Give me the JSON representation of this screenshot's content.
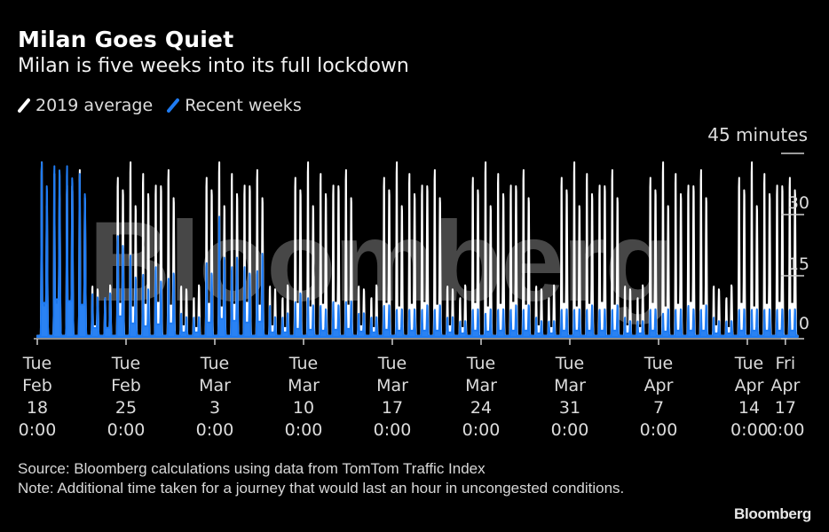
{
  "header": {
    "title": "Milan Goes Quiet",
    "subtitle": "Milan is five weeks into its full lockdown"
  },
  "legend": {
    "items": [
      {
        "label": "2019 average",
        "color": "#ffffff"
      },
      {
        "label": "Recent weeks",
        "color": "#1f7bf2"
      }
    ]
  },
  "chart_data": {
    "type": "area",
    "title": "Milan Goes Quiet",
    "subtitle": "Milan is five weeks into its full lockdown",
    "ylabel": "45 minutes",
    "ylim": [
      0,
      45
    ],
    "yticks": [
      {
        "value": 45,
        "label": ""
      },
      {
        "value": 30,
        "label": "30"
      },
      {
        "value": 15,
        "label": "15"
      },
      {
        "value": 0,
        "label": "0"
      }
    ],
    "units_label": "45 minutes",
    "grid": false,
    "legend_position": "top-left",
    "xlim_days": [
      0,
      59
    ],
    "xticks": [
      {
        "day": 0,
        "lines": [
          "Tue",
          "Feb",
          "18",
          "0:00"
        ]
      },
      {
        "day": 7,
        "lines": [
          "Tue",
          "Feb",
          "25",
          "0:00"
        ]
      },
      {
        "day": 14,
        "lines": [
          "Tue",
          "Mar",
          "3",
          "0:00"
        ]
      },
      {
        "day": 21,
        "lines": [
          "Tue",
          "Mar",
          "10",
          "0:00"
        ]
      },
      {
        "day": 28,
        "lines": [
          "Tue",
          "Mar",
          "17",
          "0:00"
        ]
      },
      {
        "day": 35,
        "lines": [
          "Tue",
          "Mar",
          "24",
          "0:00"
        ]
      },
      {
        "day": 42,
        "lines": [
          "Tue",
          "Mar",
          "31",
          "0:00"
        ]
      },
      {
        "day": 49,
        "lines": [
          "Tue",
          "Apr",
          "7",
          "0:00"
        ]
      },
      {
        "day": 56,
        "lines": [
          "Tue",
          "Apr",
          "14",
          "0:00"
        ]
      },
      {
        "day": 59,
        "lines": [
          "Fri",
          "Apr",
          "17",
          "0:00"
        ]
      }
    ],
    "series": [
      {
        "name": "2019 average",
        "color": "#ffffff",
        "note": "Daily peak minutes [morning, evening], day 0 = Tue Feb 18",
        "daily_peaks": [
          [
            45,
            33
          ],
          [
            42,
            36
          ],
          [
            39,
            38
          ],
          [
            43,
            35
          ],
          [
            13,
            12
          ],
          [
            10,
            13
          ],
          [
            41,
            37
          ],
          [
            45,
            33
          ],
          [
            42,
            36
          ],
          [
            39,
            38
          ],
          [
            43,
            35
          ],
          [
            13,
            12
          ],
          [
            10,
            13
          ],
          [
            41,
            37
          ],
          [
            45,
            33
          ],
          [
            42,
            36
          ],
          [
            39,
            38
          ],
          [
            43,
            35
          ],
          [
            13,
            12
          ],
          [
            10,
            13
          ],
          [
            41,
            37
          ],
          [
            45,
            33
          ],
          [
            42,
            36
          ],
          [
            39,
            38
          ],
          [
            43,
            35
          ],
          [
            13,
            12
          ],
          [
            10,
            13
          ],
          [
            41,
            37
          ],
          [
            45,
            33
          ],
          [
            42,
            36
          ],
          [
            39,
            38
          ],
          [
            43,
            35
          ],
          [
            13,
            12
          ],
          [
            10,
            13
          ],
          [
            41,
            37
          ],
          [
            45,
            33
          ],
          [
            42,
            36
          ],
          [
            39,
            38
          ],
          [
            43,
            35
          ],
          [
            13,
            12
          ],
          [
            10,
            13
          ],
          [
            41,
            37
          ],
          [
            45,
            33
          ],
          [
            42,
            36
          ],
          [
            39,
            38
          ],
          [
            43,
            35
          ],
          [
            13,
            12
          ],
          [
            10,
            13
          ],
          [
            41,
            37
          ],
          [
            45,
            33
          ],
          [
            42,
            36
          ],
          [
            39,
            38
          ],
          [
            43,
            35
          ],
          [
            13,
            12
          ],
          [
            10,
            13
          ],
          [
            41,
            37
          ],
          [
            45,
            33
          ],
          [
            42,
            36
          ],
          [
            39,
            38
          ],
          [
            41,
            37
          ]
        ]
      },
      {
        "name": "Recent weeks",
        "color": "#1f7bf2",
        "note": "Daily peak minutes [morning, evening], day 0 = Tue Feb 18",
        "daily_peaks": [
          [
            45,
            38
          ],
          [
            44,
            42
          ],
          [
            44,
            40
          ],
          [
            42,
            36
          ],
          [
            11,
            10
          ],
          [
            10,
            11
          ],
          [
            26,
            23
          ],
          [
            21,
            15
          ],
          [
            16,
            12
          ],
          [
            18,
            14
          ],
          [
            15,
            16
          ],
          [
            6,
            5
          ],
          [
            5,
            5
          ],
          [
            19,
            16
          ],
          [
            31,
            20
          ],
          [
            18,
            20
          ],
          [
            18,
            16
          ],
          [
            17,
            21
          ],
          [
            8,
            5
          ],
          [
            5,
            6
          ],
          [
            9,
            11
          ],
          [
            10,
            8
          ],
          [
            8,
            7
          ],
          [
            9,
            8
          ],
          [
            9,
            9
          ],
          [
            6,
            6
          ],
          [
            5,
            5
          ],
          [
            8,
            8
          ],
          [
            7,
            7
          ],
          [
            7,
            7
          ],
          [
            7,
            8
          ],
          [
            7,
            8
          ],
          [
            5,
            5
          ],
          [
            4,
            4
          ],
          [
            7,
            7
          ],
          [
            6,
            7
          ],
          [
            7,
            7
          ],
          [
            7,
            8
          ],
          [
            7,
            8
          ],
          [
            5,
            4
          ],
          [
            4,
            4
          ],
          [
            7,
            7
          ],
          [
            7,
            7
          ],
          [
            7,
            8
          ],
          [
            7,
            7
          ],
          [
            7,
            8
          ],
          [
            5,
            4
          ],
          [
            4,
            4
          ],
          [
            7,
            7
          ],
          [
            6,
            7
          ],
          [
            7,
            7
          ],
          [
            8,
            7
          ],
          [
            7,
            8
          ],
          [
            5,
            4
          ],
          [
            4,
            4
          ],
          [
            7,
            7
          ],
          [
            7,
            7
          ],
          [
            7,
            7
          ],
          [
            7,
            7
          ],
          [
            7,
            7
          ]
        ]
      }
    ]
  },
  "watermark": "Bloomberg",
  "footer": {
    "source": "Source: Bloomberg calculations using data from TomTom Traffic Index",
    "note": "Note: Additional time taken for a journey that would last an hour in uncongested conditions.",
    "brand": "Bloomberg"
  }
}
